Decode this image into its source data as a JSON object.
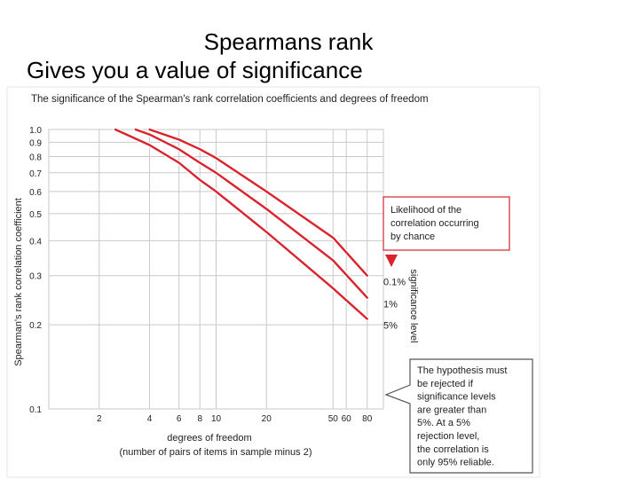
{
  "slide": {
    "title_line1": "Spearmans rank",
    "title_line2": "Gives you a value of significance"
  },
  "chart_data": {
    "type": "line",
    "title": "The significance of the Spearman's rank correlation coefficients and degrees of freedom",
    "xlabel": "degrees of freedom",
    "xlabel2": "(number of pairs of items in sample minus 2)",
    "ylabel": "Spearman's rank correlation coefficient",
    "x_scale": "log",
    "y_scale": "log",
    "xlim": [
      1,
      100
    ],
    "ylim": [
      0.1,
      1.0
    ],
    "grid": true,
    "x_ticks": [
      2,
      4,
      6,
      8,
      10,
      20,
      50,
      60,
      80
    ],
    "y_ticks": [
      1.0,
      0.9,
      0.8,
      0.7,
      0.6,
      0.5,
      0.4,
      0.3,
      0.2,
      0.1
    ],
    "y_tick_labels": [
      "1.0",
      "0.9",
      "0.8",
      "0.7",
      "0.6",
      "0.5",
      "0.4",
      "0.3",
      "0.2",
      "0.1"
    ],
    "series": [
      {
        "name": "0.1%",
        "color": "#d9232d",
        "points": [
          [
            4,
            1.0
          ],
          [
            6,
            0.92
          ],
          [
            8,
            0.85
          ],
          [
            10,
            0.79
          ],
          [
            20,
            0.6
          ],
          [
            50,
            0.41
          ],
          [
            80,
            0.3
          ]
        ]
      },
      {
        "name": "1%",
        "color": "#d9232d",
        "points": [
          [
            3.3,
            1.0
          ],
          [
            4,
            0.96
          ],
          [
            6,
            0.85
          ],
          [
            8,
            0.76
          ],
          [
            10,
            0.7
          ],
          [
            20,
            0.52
          ],
          [
            50,
            0.34
          ],
          [
            80,
            0.25
          ]
        ]
      },
      {
        "name": "5%",
        "color": "#d9232d",
        "points": [
          [
            2.5,
            1.0
          ],
          [
            4,
            0.88
          ],
          [
            6,
            0.76
          ],
          [
            8,
            0.66
          ],
          [
            10,
            0.6
          ],
          [
            20,
            0.43
          ],
          [
            50,
            0.27
          ],
          [
            80,
            0.21
          ]
        ]
      }
    ],
    "side_label": "significance level",
    "annotations": [
      "Likelihood of the correlation occurring by chance",
      "The hypothesis must be rejected if significance levels are greater than 5%. At a 5% rejection level, the correlation is only 95% reliable."
    ]
  }
}
